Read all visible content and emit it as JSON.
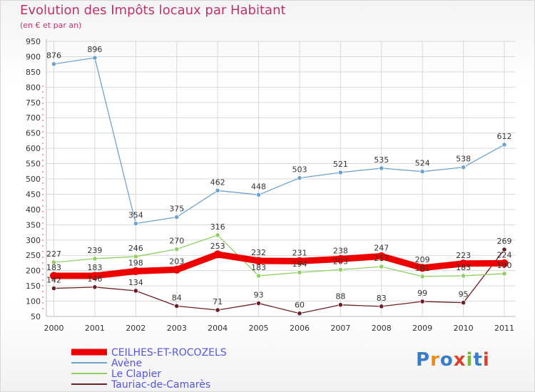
{
  "chart_data": {
    "type": "line",
    "title": "Evolution des Impôts locaux par Habitant",
    "subtitle": "(en € et par an)",
    "xlabel": "",
    "ylabel": "",
    "ylim": [
      50,
      950
    ],
    "yticks": [
      50,
      100,
      150,
      200,
      250,
      300,
      350,
      400,
      450,
      500,
      550,
      600,
      650,
      700,
      750,
      800,
      850,
      900,
      950
    ],
    "categories": [
      "2000",
      "2001",
      "2002",
      "2003",
      "2004",
      "2005",
      "2006",
      "2007",
      "2008",
      "2009",
      "2010",
      "2011"
    ],
    "series": [
      {
        "name": "Tauriac-de-Camarès",
        "color": "#6b1f24",
        "values": [
          142,
          146,
          134,
          84,
          71,
          93,
          60,
          88,
          83,
          99,
          95,
          269
        ],
        "labels": [
          "142",
          "146",
          "134",
          "84",
          "71",
          "93",
          "60",
          "88",
          "83",
          "99",
          "95",
          "269"
        ]
      },
      {
        "name": "Le Clapier",
        "color": "#8fd060",
        "values": [
          227,
          239,
          246,
          270,
          316,
          183,
          194,
          203,
          213,
          181,
          183,
          190
        ],
        "labels": [
          "227",
          "239",
          "246",
          "270",
          "316",
          "183",
          "194",
          "203",
          "213",
          "181",
          "183",
          "190"
        ]
      },
      {
        "name": "Avène",
        "color": "#6fa3cf",
        "values": [
          876,
          896,
          354,
          375,
          462,
          448,
          503,
          521,
          535,
          524,
          538,
          612
        ],
        "labels": [
          "876",
          "896",
          "354",
          "375",
          "462",
          "448",
          "503",
          "521",
          "535",
          "524",
          "538",
          "612"
        ]
      },
      {
        "name": "CEILHES-ET-ROCOZELS",
        "color": "#ee0000",
        "values": [
          183,
          183,
          198,
          203,
          253,
          232,
          231,
          238,
          247,
          209,
          223,
          224
        ],
        "labels": [
          "183",
          "183",
          "198",
          "203",
          "253",
          "232",
          "231",
          "238",
          "247",
          "209",
          "223",
          "224"
        ]
      }
    ],
    "legend": [
      {
        "name": "CEILHES-ET-ROCOZELS",
        "color": "#ee0000"
      },
      {
        "name": "Avène",
        "color": "#6fa3cf"
      },
      {
        "name": "Le Clapier",
        "color": "#8fd060"
      },
      {
        "name": "Tauriac-de-Camarès",
        "color": "#6b1f24"
      }
    ],
    "legend_text_color": "#5555dd",
    "watermark": "Proxiti"
  }
}
